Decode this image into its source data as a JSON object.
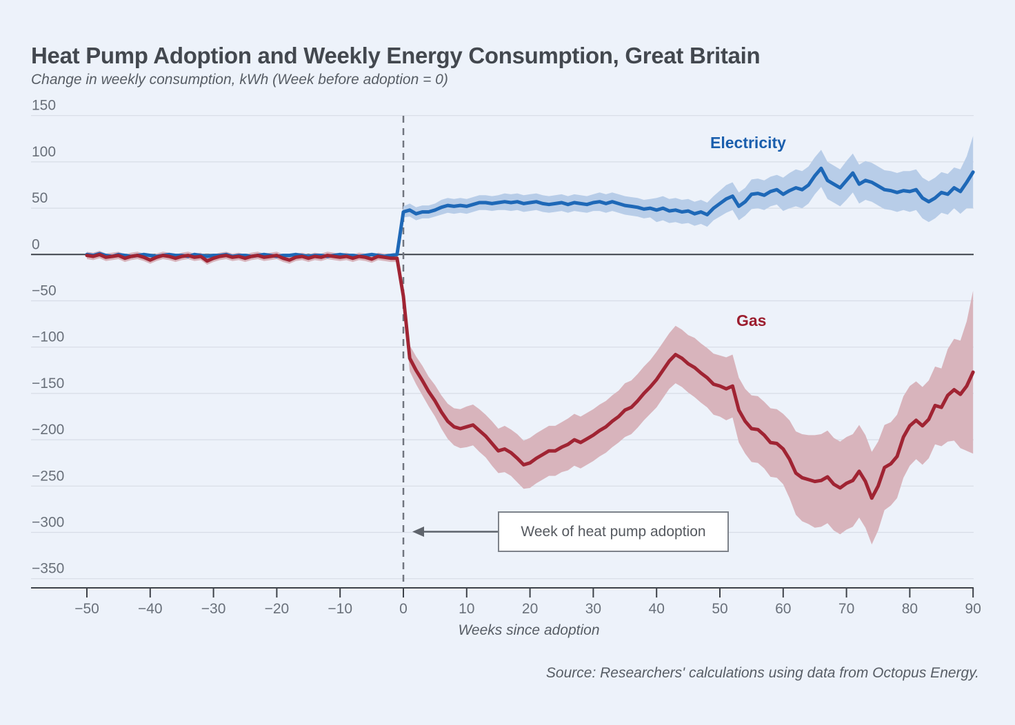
{
  "header": {
    "title": "Heat Pump Adoption and Weekly Energy Consumption, Great Britain",
    "subtitle": "Change in weekly consumption, kWh (Week before adoption = 0)"
  },
  "footer": {
    "source": "Source: Researchers' calculations using data from Octopus Energy."
  },
  "colors": {
    "background": "#edf2fa",
    "grid": "#d7dce6",
    "axis": "#3c4148",
    "tick_label": "#69707a",
    "dashed_line": "#70757e",
    "arrow": "#5f646c",
    "annotation_border": "#7d828a"
  },
  "chart_data": {
    "type": "line",
    "title": "Heat Pump Adoption and Weekly Energy Consumption, Great Britain",
    "subtitle": "Change in weekly consumption, kWh (Week before adoption = 0)",
    "xlabel": "Weeks since adoption",
    "ylabel": "Change in weekly consumption, kWh",
    "x_range": {
      "start": -50,
      "end": 90,
      "step": 1
    },
    "x_ticks": [
      -50,
      -40,
      -30,
      -20,
      -10,
      0,
      10,
      20,
      30,
      40,
      50,
      60,
      70,
      80,
      90
    ],
    "y_ticks": [
      150,
      100,
      50,
      0,
      -50,
      -100,
      -150,
      -200,
      -250,
      -300,
      -350
    ],
    "ylim": [
      -380,
      160
    ],
    "grid": true,
    "legend_position": "inline-labels",
    "annotation": {
      "text": "Week of heat pump adoption",
      "week": 0
    },
    "reference_week": 0,
    "series": [
      {
        "name": "Electricity",
        "line_color": "#1e68b7",
        "band_color": "#b8cde8",
        "label_color": "#1a5ead",
        "values": [
          0,
          -1,
          1,
          -1,
          -2,
          0,
          -1,
          -2,
          -1,
          0,
          -1,
          -2,
          -1,
          0,
          -1,
          -1,
          -2,
          0,
          -1,
          -2,
          -1,
          -1,
          0,
          -2,
          -1,
          -1,
          -2,
          -1,
          0,
          -1,
          -2,
          -1,
          -1,
          0,
          -1,
          -2,
          -1,
          -1,
          -2,
          -1,
          0,
          -1,
          -1,
          -2,
          -1,
          0,
          -1,
          -2,
          -1,
          0,
          46,
          48,
          44,
          46,
          46,
          48,
          51,
          53,
          52,
          53,
          52,
          54,
          56,
          56,
          55,
          56,
          57,
          56,
          57,
          55,
          56,
          57,
          55,
          54,
          55,
          56,
          54,
          56,
          55,
          54,
          56,
          57,
          55,
          57,
          55,
          53,
          52,
          51,
          49,
          50,
          48,
          50,
          47,
          48,
          46,
          47,
          44,
          46,
          43,
          50,
          55,
          60,
          63,
          52,
          57,
          65,
          66,
          64,
          68,
          70,
          65,
          69,
          72,
          70,
          75,
          85,
          93,
          80,
          76,
          72,
          80,
          88,
          76,
          80,
          78,
          74,
          70,
          69,
          67,
          69,
          68,
          70,
          61,
          57,
          61,
          67,
          65,
          72,
          68,
          78,
          89
        ],
        "band_halfwidth": [
          2,
          2,
          2,
          2,
          2,
          2,
          2,
          2,
          2,
          2,
          2,
          2,
          2,
          2,
          2,
          2,
          2,
          2,
          2,
          2,
          2,
          2,
          2,
          2,
          2,
          2,
          2,
          2,
          2,
          2,
          2,
          2,
          2,
          2,
          2,
          2,
          2,
          2,
          2,
          2,
          2,
          2,
          2,
          2,
          2,
          2,
          2,
          2,
          2,
          2,
          6,
          7,
          7,
          7,
          7,
          7,
          8,
          8,
          8,
          8,
          8,
          8,
          8,
          8,
          8,
          8,
          9,
          9,
          9,
          9,
          9,
          9,
          9,
          9,
          9,
          9,
          9,
          9,
          9,
          9,
          9,
          10,
          10,
          10,
          10,
          10,
          10,
          10,
          10,
          10,
          13,
          13,
          13,
          13,
          13,
          13,
          13,
          13,
          13,
          13,
          14,
          15,
          15,
          15,
          15,
          16,
          16,
          16,
          16,
          16,
          18,
          19,
          20,
          20,
          20,
          20,
          20,
          20,
          20,
          20,
          21,
          21,
          21,
          21,
          21,
          21,
          21,
          21,
          21,
          21,
          22,
          22,
          22,
          22,
          22,
          22,
          22,
          22,
          24,
          28,
          39
        ]
      },
      {
        "name": "Gas",
        "line_color": "#a02433",
        "band_color": "#d8b4bc",
        "label_color": "#9c1e2f",
        "values": [
          -1,
          -2,
          0,
          -3,
          -2,
          -1,
          -4,
          -2,
          -1,
          -3,
          -6,
          -3,
          -1,
          -2,
          -4,
          -2,
          -1,
          -3,
          -2,
          -7,
          -4,
          -2,
          -1,
          -3,
          -2,
          -4,
          -2,
          -1,
          -3,
          -2,
          -1,
          -4,
          -6,
          -3,
          -2,
          -4,
          -2,
          -3,
          -1,
          -2,
          -3,
          -2,
          -4,
          -2,
          -3,
          -5,
          -2,
          -3,
          -4,
          -4,
          -45,
          -112,
          -125,
          -136,
          -148,
          -158,
          -170,
          -180,
          -186,
          -188,
          -186,
          -184,
          -190,
          -196,
          -204,
          -212,
          -210,
          -214,
          -220,
          -227,
          -225,
          -220,
          -216,
          -212,
          -212,
          -208,
          -205,
          -200,
          -203,
          -199,
          -195,
          -190,
          -186,
          -180,
          -175,
          -168,
          -165,
          -158,
          -150,
          -143,
          -135,
          -125,
          -115,
          -108,
          -112,
          -118,
          -122,
          -128,
          -133,
          -140,
          -142,
          -145,
          -142,
          -168,
          -180,
          -188,
          -189,
          -195,
          -203,
          -204,
          -210,
          -221,
          -236,
          -241,
          -243,
          -245,
          -244,
          -240,
          -248,
          -252,
          -247,
          -244,
          -234,
          -245,
          -263,
          -250,
          -230,
          -226,
          -218,
          -197,
          -185,
          -179,
          -185,
          -178,
          -163,
          -165,
          -152,
          -146,
          -151,
          -142,
          -127
        ],
        "band_halfwidth": [
          4,
          4,
          4,
          4,
          4,
          4,
          4,
          4,
          4,
          4,
          4,
          4,
          4,
          4,
          4,
          4,
          4,
          4,
          4,
          4,
          4,
          4,
          4,
          4,
          4,
          4,
          4,
          4,
          4,
          4,
          4,
          4,
          4,
          4,
          4,
          4,
          4,
          4,
          4,
          4,
          4,
          4,
          4,
          4,
          4,
          4,
          4,
          4,
          4,
          4,
          10,
          14,
          15,
          16,
          16,
          17,
          18,
          19,
          20,
          21,
          22,
          22,
          23,
          23,
          24,
          24,
          25,
          25,
          26,
          26,
          27,
          27,
          27,
          27,
          27,
          27,
          28,
          28,
          28,
          28,
          28,
          28,
          28,
          28,
          28,
          29,
          29,
          29,
          29,
          29,
          30,
          30,
          30,
          31,
          31,
          31,
          32,
          32,
          32,
          33,
          33,
          34,
          34,
          35,
          35,
          36,
          36,
          36,
          37,
          37,
          38,
          42,
          45,
          47,
          48,
          50,
          50,
          50,
          50,
          50,
          50,
          50,
          50,
          50,
          50,
          48,
          46,
          45,
          45,
          44,
          43,
          42,
          42,
          42,
          42,
          42,
          50,
          55,
          58,
          70,
          88
        ]
      }
    ]
  }
}
